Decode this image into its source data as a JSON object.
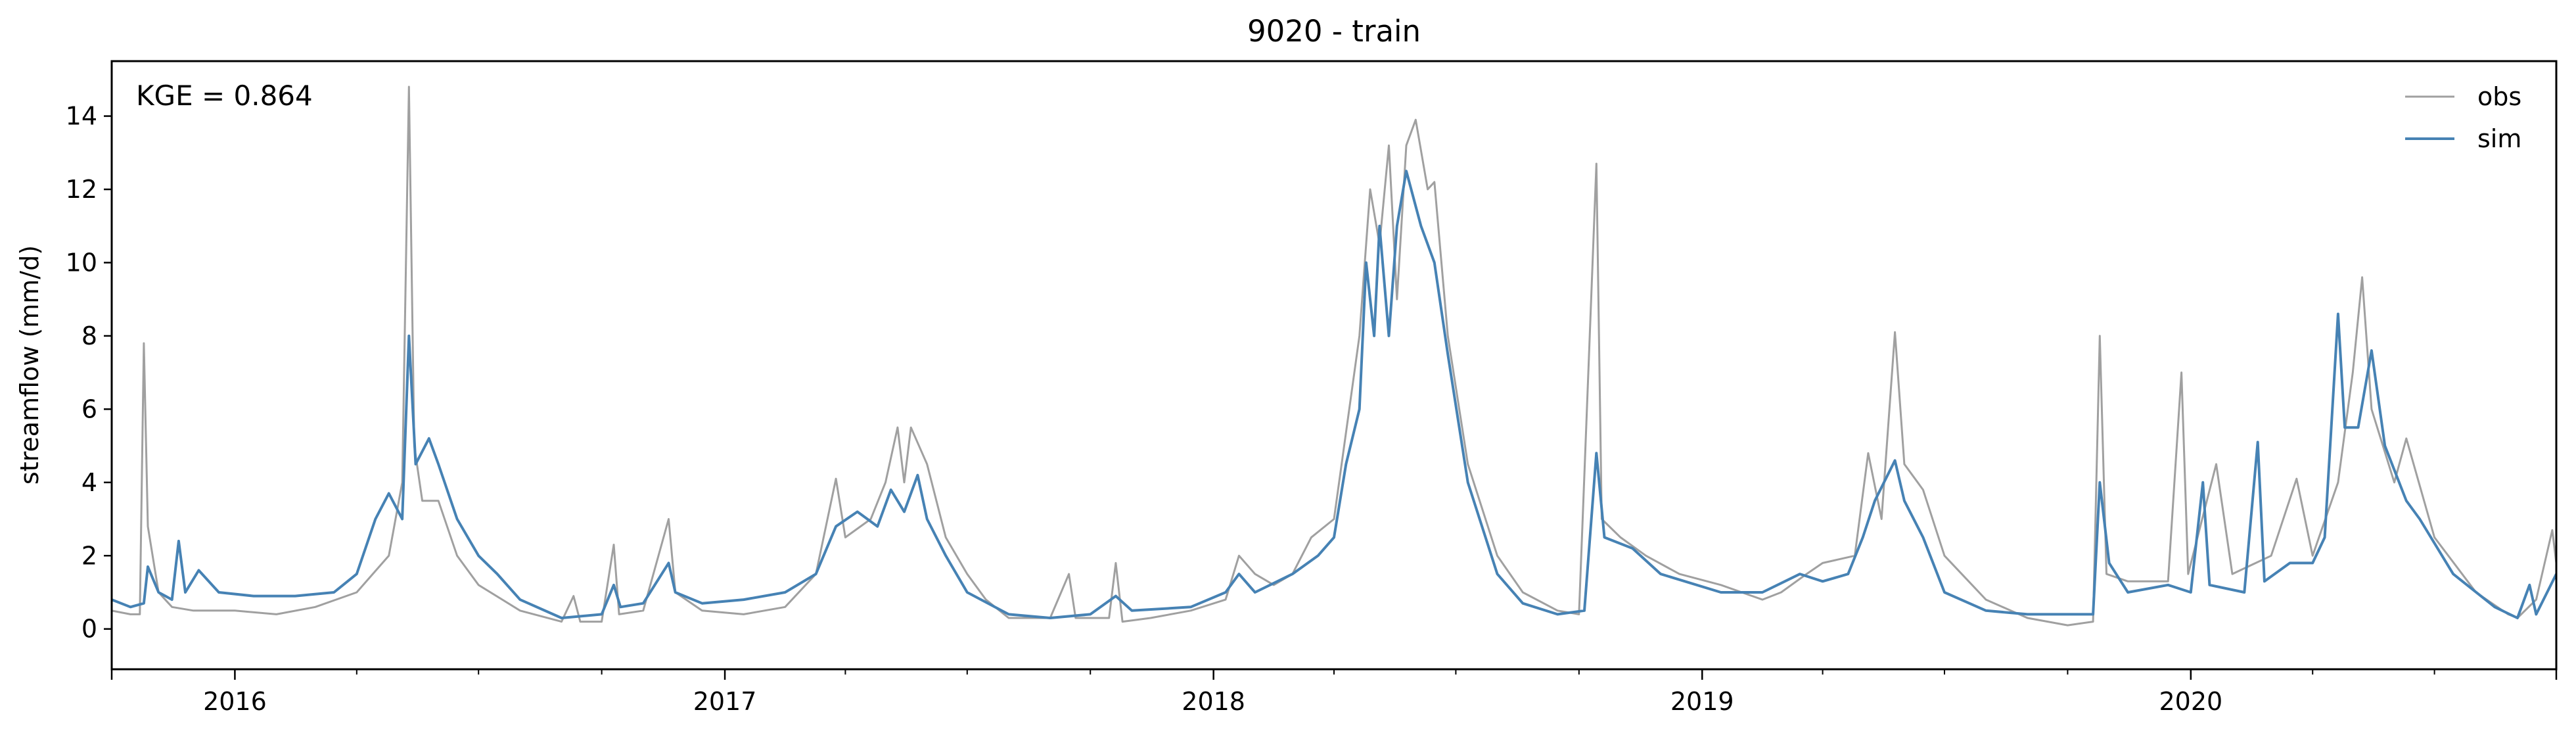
{
  "chart_data": {
    "type": "line",
    "title": "9020 - train",
    "xlabel": "",
    "ylabel": "streamflow (mm/d)",
    "xlim": [
      "2015-10-01",
      "2020-09-30"
    ],
    "ylim": [
      -1.1,
      15.5
    ],
    "yticks": [
      0,
      2,
      4,
      6,
      8,
      10,
      12,
      14
    ],
    "xticks": [
      {
        "date": "2016-01-01",
        "label": "2016"
      },
      {
        "date": "2017-01-01",
        "label": "2017"
      },
      {
        "date": "2018-01-01",
        "label": "2018"
      },
      {
        "date": "2019-01-01",
        "label": "2019"
      },
      {
        "date": "2020-01-01",
        "label": "2020"
      }
    ],
    "grid": false,
    "legend_position": "top-right",
    "annotation": "KGE = 0.864",
    "series": [
      {
        "name": "obs",
        "color": "#a0a0a0",
        "points": [
          [
            "2015-10-01",
            0.5
          ],
          [
            "2015-10-15",
            0.4
          ],
          [
            "2015-10-22",
            0.4
          ],
          [
            "2015-10-25",
            7.8
          ],
          [
            "2015-10-28",
            2.8
          ],
          [
            "2015-11-05",
            1.0
          ],
          [
            "2015-11-15",
            0.6
          ],
          [
            "2015-12-01",
            0.5
          ],
          [
            "2016-01-01",
            0.5
          ],
          [
            "2016-02-01",
            0.4
          ],
          [
            "2016-03-01",
            0.6
          ],
          [
            "2016-04-01",
            1.0
          ],
          [
            "2016-04-25",
            2.0
          ],
          [
            "2016-05-05",
            4.0
          ],
          [
            "2016-05-10",
            14.8
          ],
          [
            "2016-05-14",
            5.0
          ],
          [
            "2016-05-20",
            3.5
          ],
          [
            "2016-06-01",
            3.5
          ],
          [
            "2016-06-15",
            2.0
          ],
          [
            "2016-07-01",
            1.2
          ],
          [
            "2016-08-01",
            0.5
          ],
          [
            "2016-09-01",
            0.2
          ],
          [
            "2016-09-10",
            0.9
          ],
          [
            "2016-09-15",
            0.2
          ],
          [
            "2016-10-01",
            0.2
          ],
          [
            "2016-10-10",
            2.3
          ],
          [
            "2016-10-14",
            0.4
          ],
          [
            "2016-11-01",
            0.5
          ],
          [
            "2016-11-20",
            3.0
          ],
          [
            "2016-11-25",
            1.0
          ],
          [
            "2016-12-15",
            0.5
          ],
          [
            "2017-01-15",
            0.4
          ],
          [
            "2017-02-15",
            0.6
          ],
          [
            "2017-03-10",
            1.5
          ],
          [
            "2017-03-25",
            4.1
          ],
          [
            "2017-04-01",
            2.5
          ],
          [
            "2017-04-20",
            3.0
          ],
          [
            "2017-05-01",
            4.0
          ],
          [
            "2017-05-10",
            5.5
          ],
          [
            "2017-05-15",
            4.0
          ],
          [
            "2017-05-20",
            5.5
          ],
          [
            "2017-06-01",
            4.5
          ],
          [
            "2017-06-15",
            2.5
          ],
          [
            "2017-07-01",
            1.5
          ],
          [
            "2017-07-15",
            0.8
          ],
          [
            "2017-08-01",
            0.3
          ],
          [
            "2017-09-01",
            0.3
          ],
          [
            "2017-09-15",
            1.5
          ],
          [
            "2017-09-20",
            0.3
          ],
          [
            "2017-10-15",
            0.3
          ],
          [
            "2017-10-20",
            1.8
          ],
          [
            "2017-10-25",
            0.2
          ],
          [
            "2017-11-15",
            0.3
          ],
          [
            "2017-12-15",
            0.5
          ],
          [
            "2018-01-10",
            0.8
          ],
          [
            "2018-01-20",
            2.0
          ],
          [
            "2018-02-01",
            1.5
          ],
          [
            "2018-02-15",
            1.2
          ],
          [
            "2018-03-01",
            1.5
          ],
          [
            "2018-03-15",
            2.5
          ],
          [
            "2018-04-01",
            3.0
          ],
          [
            "2018-04-20",
            8.0
          ],
          [
            "2018-04-28",
            12.0
          ],
          [
            "2018-05-05",
            10.5
          ],
          [
            "2018-05-12",
            13.2
          ],
          [
            "2018-05-18",
            9.0
          ],
          [
            "2018-05-25",
            13.2
          ],
          [
            "2018-06-01",
            13.9
          ],
          [
            "2018-06-10",
            12.0
          ],
          [
            "2018-06-15",
            12.2
          ],
          [
            "2018-06-25",
            8.0
          ],
          [
            "2018-07-10",
            4.5
          ],
          [
            "2018-08-01",
            2.0
          ],
          [
            "2018-08-20",
            1.0
          ],
          [
            "2018-09-15",
            0.5
          ],
          [
            "2018-10-01",
            0.4
          ],
          [
            "2018-10-14",
            12.7
          ],
          [
            "2018-10-18",
            3.0
          ],
          [
            "2018-11-01",
            2.5
          ],
          [
            "2018-11-20",
            2.0
          ],
          [
            "2018-12-15",
            1.5
          ],
          [
            "2019-01-15",
            1.2
          ],
          [
            "2019-02-15",
            0.8
          ],
          [
            "2019-03-01",
            1.0
          ],
          [
            "2019-03-20",
            1.5
          ],
          [
            "2019-04-01",
            1.8
          ],
          [
            "2019-04-25",
            2.0
          ],
          [
            "2019-05-05",
            4.8
          ],
          [
            "2019-05-15",
            3.0
          ],
          [
            "2019-05-25",
            8.1
          ],
          [
            "2019-06-01",
            4.5
          ],
          [
            "2019-06-15",
            3.8
          ],
          [
            "2019-07-01",
            2.0
          ],
          [
            "2019-08-01",
            0.8
          ],
          [
            "2019-09-01",
            0.3
          ],
          [
            "2019-10-01",
            0.1
          ],
          [
            "2019-10-20",
            0.2
          ],
          [
            "2019-10-25",
            8.0
          ],
          [
            "2019-10-30",
            1.5
          ],
          [
            "2019-11-15",
            1.3
          ],
          [
            "2019-12-15",
            1.3
          ],
          [
            "2019-12-25",
            7.0
          ],
          [
            "2019-12-30",
            1.5
          ],
          [
            "2020-01-20",
            4.5
          ],
          [
            "2020-02-01",
            1.5
          ],
          [
            "2020-03-01",
            2.0
          ],
          [
            "2020-03-20",
            4.1
          ],
          [
            "2020-04-01",
            2.0
          ],
          [
            "2020-04-20",
            4.0
          ],
          [
            "2020-05-01",
            7.0
          ],
          [
            "2020-05-08",
            9.6
          ],
          [
            "2020-05-15",
            6.0
          ],
          [
            "2020-06-01",
            4.0
          ],
          [
            "2020-06-10",
            5.2
          ],
          [
            "2020-07-01",
            2.5
          ],
          [
            "2020-08-01",
            1.0
          ],
          [
            "2020-08-25",
            0.4
          ],
          [
            "2020-09-01",
            0.3
          ],
          [
            "2020-09-15",
            0.8
          ],
          [
            "2020-09-27",
            2.7
          ],
          [
            "2020-09-30",
            1.8
          ]
        ]
      },
      {
        "name": "sim",
        "color": "#4682b4",
        "points": [
          [
            "2015-10-01",
            0.8
          ],
          [
            "2015-10-15",
            0.6
          ],
          [
            "2015-10-25",
            0.7
          ],
          [
            "2015-10-28",
            1.7
          ],
          [
            "2015-11-05",
            1.0
          ],
          [
            "2015-11-15",
            0.8
          ],
          [
            "2015-11-20",
            2.4
          ],
          [
            "2015-11-25",
            1.0
          ],
          [
            "2015-12-05",
            1.6
          ],
          [
            "2015-12-20",
            1.0
          ],
          [
            "2016-01-15",
            0.9
          ],
          [
            "2016-02-15",
            0.9
          ],
          [
            "2016-03-15",
            1.0
          ],
          [
            "2016-04-01",
            1.5
          ],
          [
            "2016-04-15",
            3.0
          ],
          [
            "2016-04-25",
            3.7
          ],
          [
            "2016-05-05",
            3.0
          ],
          [
            "2016-05-10",
            8.0
          ],
          [
            "2016-05-15",
            4.5
          ],
          [
            "2016-05-25",
            5.2
          ],
          [
            "2016-06-01",
            4.5
          ],
          [
            "2016-06-15",
            3.0
          ],
          [
            "2016-07-01",
            2.0
          ],
          [
            "2016-07-15",
            1.5
          ],
          [
            "2016-08-01",
            0.8
          ],
          [
            "2016-09-01",
            0.3
          ],
          [
            "2016-10-01",
            0.4
          ],
          [
            "2016-10-10",
            1.2
          ],
          [
            "2016-10-15",
            0.6
          ],
          [
            "2016-11-01",
            0.7
          ],
          [
            "2016-11-20",
            1.8
          ],
          [
            "2016-11-25",
            1.0
          ],
          [
            "2016-12-15",
            0.7
          ],
          [
            "2017-01-15",
            0.8
          ],
          [
            "2017-02-15",
            1.0
          ],
          [
            "2017-03-10",
            1.5
          ],
          [
            "2017-03-25",
            2.8
          ],
          [
            "2017-04-10",
            3.2
          ],
          [
            "2017-04-25",
            2.8
          ],
          [
            "2017-05-05",
            3.8
          ],
          [
            "2017-05-15",
            3.2
          ],
          [
            "2017-05-25",
            4.2
          ],
          [
            "2017-06-01",
            3.0
          ],
          [
            "2017-06-15",
            2.0
          ],
          [
            "2017-07-01",
            1.0
          ],
          [
            "2017-08-01",
            0.4
          ],
          [
            "2017-09-01",
            0.3
          ],
          [
            "2017-10-01",
            0.4
          ],
          [
            "2017-10-20",
            0.9
          ],
          [
            "2017-11-01",
            0.5
          ],
          [
            "2017-12-15",
            0.6
          ],
          [
            "2018-01-10",
            1.0
          ],
          [
            "2018-01-20",
            1.5
          ],
          [
            "2018-02-01",
            1.0
          ],
          [
            "2018-03-01",
            1.5
          ],
          [
            "2018-03-20",
            2.0
          ],
          [
            "2018-04-01",
            2.5
          ],
          [
            "2018-04-10",
            4.5
          ],
          [
            "2018-04-20",
            6.0
          ],
          [
            "2018-04-25",
            10.0
          ],
          [
            "2018-05-01",
            8.0
          ],
          [
            "2018-05-05",
            11.0
          ],
          [
            "2018-05-12",
            8.0
          ],
          [
            "2018-05-18",
            11.0
          ],
          [
            "2018-05-25",
            12.5
          ],
          [
            "2018-06-05",
            11.0
          ],
          [
            "2018-06-15",
            10.0
          ],
          [
            "2018-06-25",
            7.5
          ],
          [
            "2018-07-10",
            4.0
          ],
          [
            "2018-08-01",
            1.5
          ],
          [
            "2018-08-20",
            0.7
          ],
          [
            "2018-09-15",
            0.4
          ],
          [
            "2018-10-05",
            0.5
          ],
          [
            "2018-10-14",
            4.8
          ],
          [
            "2018-10-20",
            2.5
          ],
          [
            "2018-11-10",
            2.2
          ],
          [
            "2018-12-01",
            1.5
          ],
          [
            "2019-01-15",
            1.0
          ],
          [
            "2019-02-15",
            1.0
          ],
          [
            "2019-03-15",
            1.5
          ],
          [
            "2019-04-01",
            1.3
          ],
          [
            "2019-04-20",
            1.5
          ],
          [
            "2019-05-01",
            2.5
          ],
          [
            "2019-05-10",
            3.5
          ],
          [
            "2019-05-25",
            4.6
          ],
          [
            "2019-06-01",
            3.5
          ],
          [
            "2019-06-15",
            2.5
          ],
          [
            "2019-07-01",
            1.0
          ],
          [
            "2019-08-01",
            0.5
          ],
          [
            "2019-09-01",
            0.4
          ],
          [
            "2019-10-01",
            0.4
          ],
          [
            "2019-10-20",
            0.4
          ],
          [
            "2019-10-25",
            4.0
          ],
          [
            "2019-11-01",
            1.8
          ],
          [
            "2019-11-15",
            1.0
          ],
          [
            "2019-12-15",
            1.2
          ],
          [
            "2020-01-01",
            1.0
          ],
          [
            "2020-01-10",
            4.0
          ],
          [
            "2020-01-15",
            1.2
          ],
          [
            "2020-02-10",
            1.0
          ],
          [
            "2020-02-20",
            5.1
          ],
          [
            "2020-02-25",
            1.3
          ],
          [
            "2020-03-15",
            1.8
          ],
          [
            "2020-04-01",
            1.8
          ],
          [
            "2020-04-10",
            2.5
          ],
          [
            "2020-04-20",
            8.6
          ],
          [
            "2020-04-25",
            5.5
          ],
          [
            "2020-05-05",
            5.5
          ],
          [
            "2020-05-15",
            7.6
          ],
          [
            "2020-05-25",
            5.0
          ],
          [
            "2020-06-10",
            3.5
          ],
          [
            "2020-06-20",
            3.0
          ],
          [
            "2020-07-15",
            1.5
          ],
          [
            "2020-08-15",
            0.6
          ],
          [
            "2020-09-01",
            0.3
          ],
          [
            "2020-09-10",
            1.2
          ],
          [
            "2020-09-15",
            0.4
          ],
          [
            "2020-09-30",
            1.5
          ]
        ]
      }
    ]
  }
}
